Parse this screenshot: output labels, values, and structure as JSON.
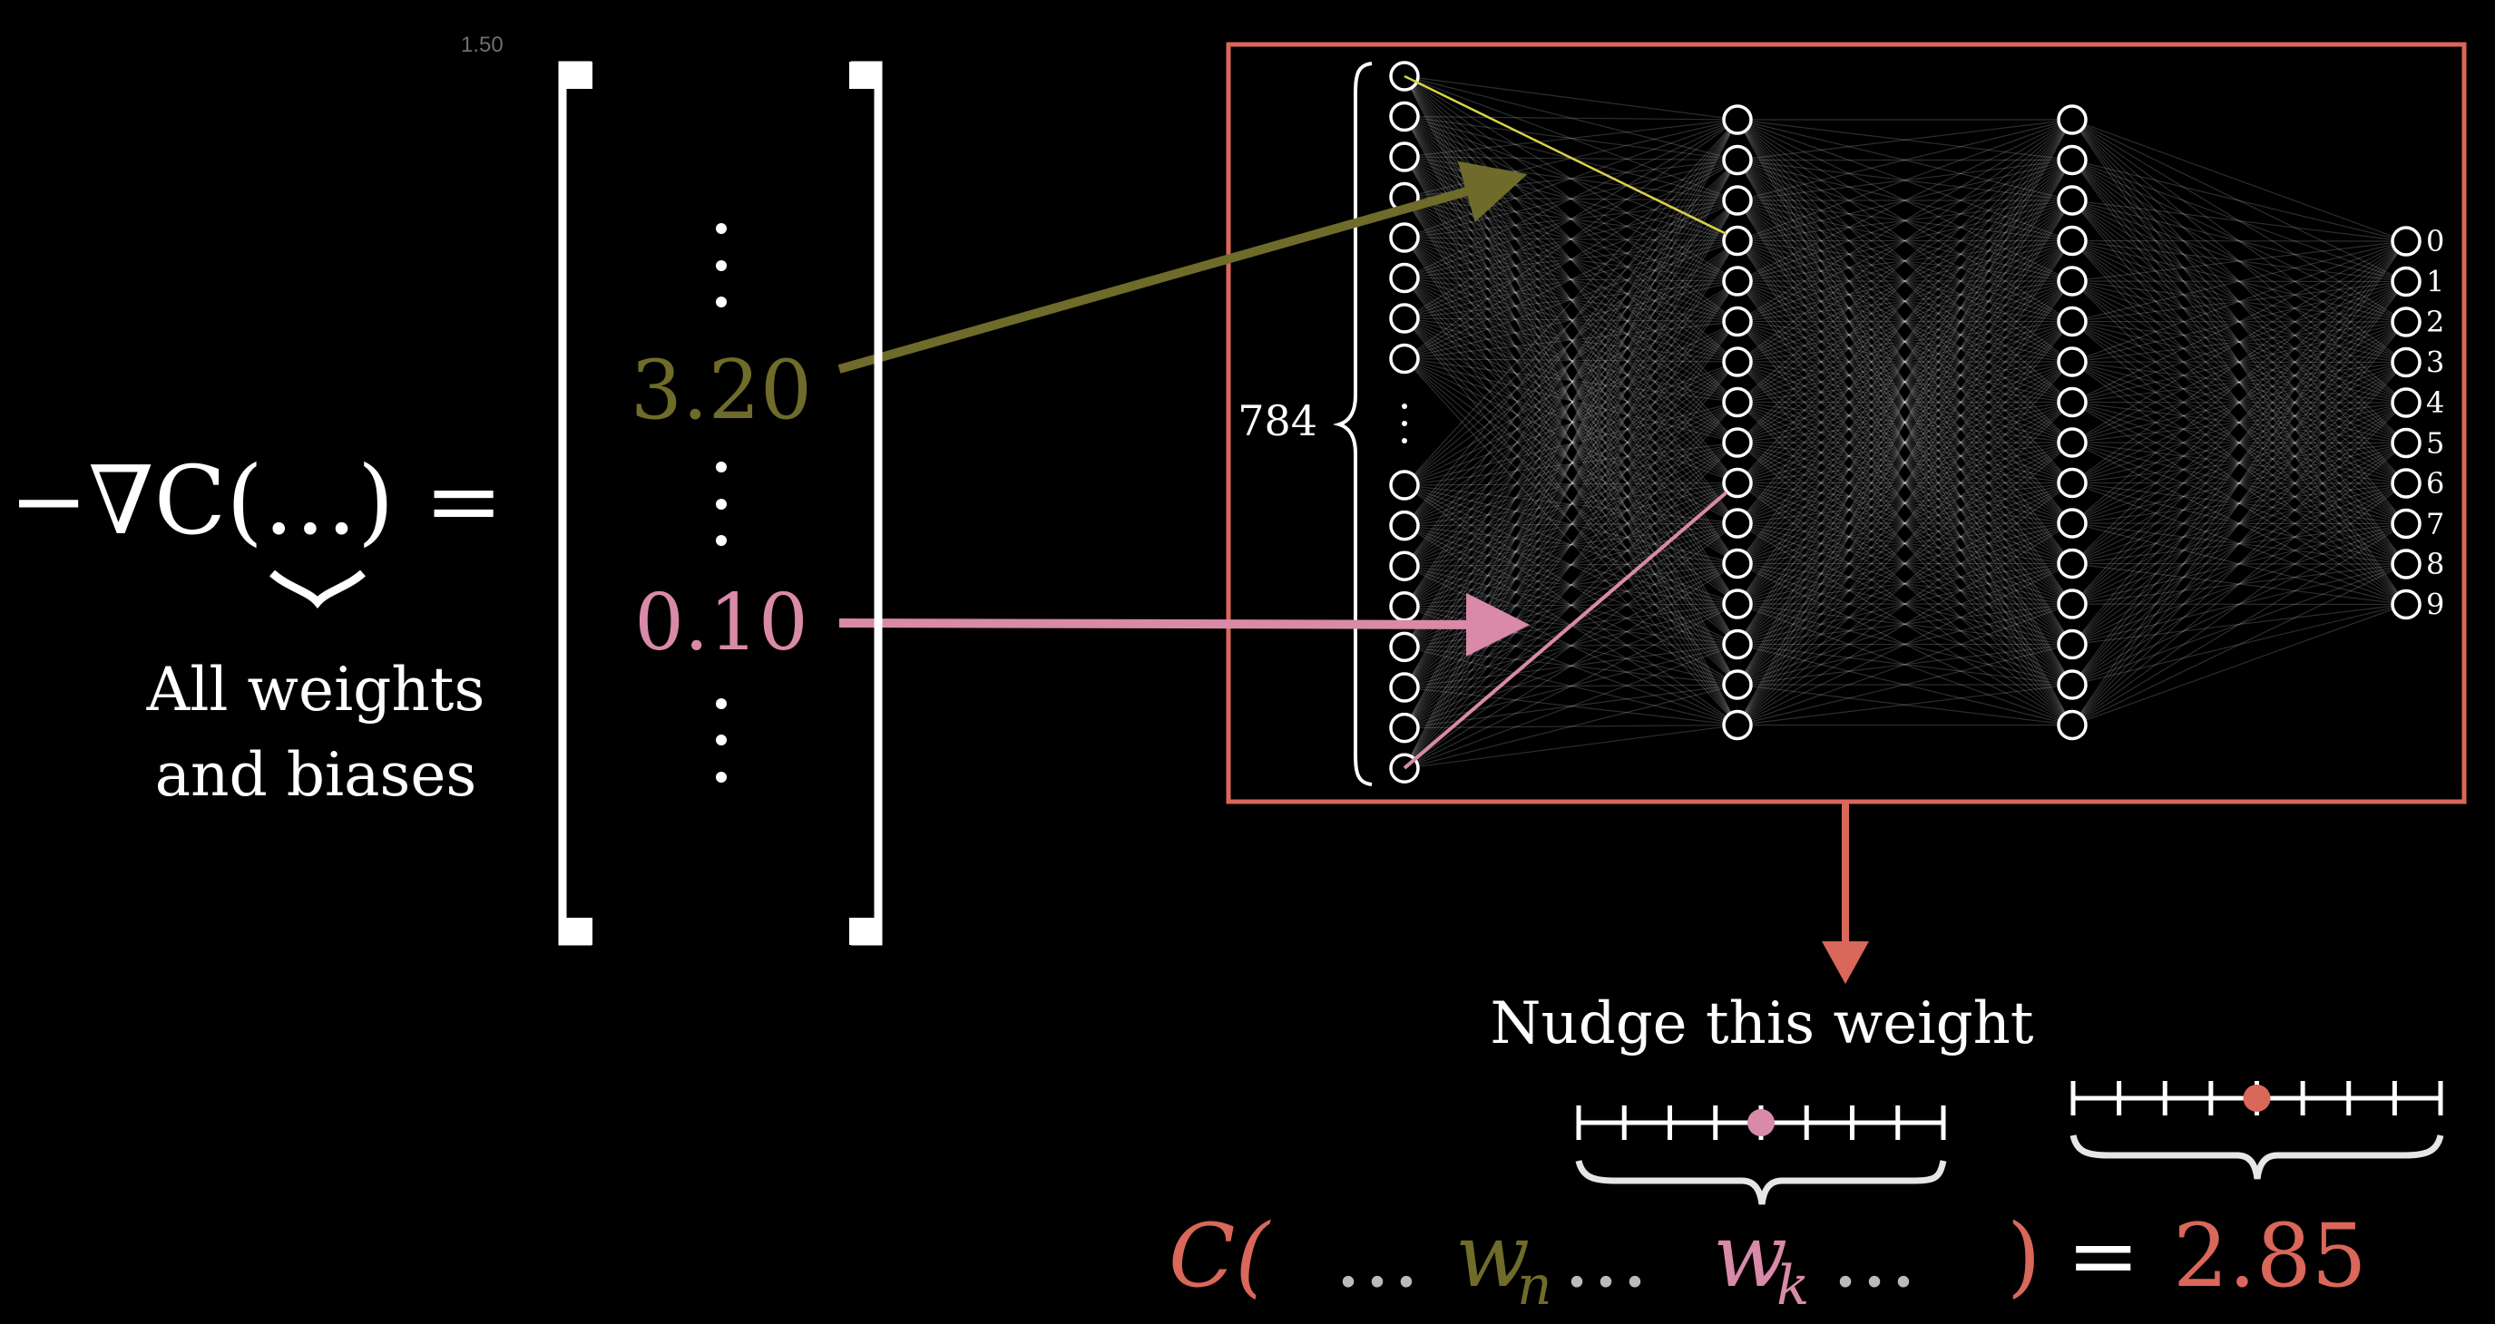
{
  "version_label": "1.50",
  "equation": {
    "lhs": "−∇C(…) =",
    "under_label_line1": "All weights",
    "under_label_line2": "and biases"
  },
  "vector": {
    "value_olive": "3.20",
    "value_pink": "0.10"
  },
  "network": {
    "input_count_label": "784",
    "output_labels": [
      "0",
      "1",
      "2",
      "3",
      "4",
      "5",
      "6",
      "7",
      "8",
      "9"
    ]
  },
  "nudge": {
    "label": "Nudge this weight",
    "slider_left_value": 0.5,
    "slider_right_value": 0.5
  },
  "cost": {
    "open": "C(",
    "dots1": "…",
    "w_n": "w",
    "n_sub": "n",
    "dots2": "…",
    "w_k": "w",
    "k_sub": "k",
    "dots3": "…",
    "close": ")",
    "equals": "=",
    "value": "2.85"
  },
  "colors": {
    "olive": "#6f6b2a",
    "olive_bright": "#d8d34a",
    "pink": "#d98aa8",
    "red": "#d9675a",
    "white": "#ffffff"
  }
}
